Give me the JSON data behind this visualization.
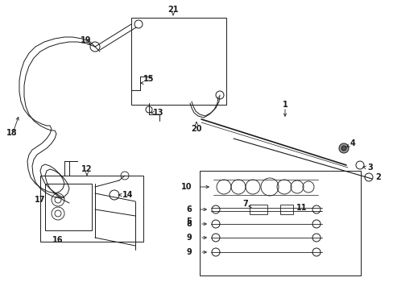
{
  "bg_color": "#ffffff",
  "line_color": "#1a1a1a",
  "figsize": [
    4.89,
    3.6
  ],
  "dpi": 100,
  "lw": 0.7
}
